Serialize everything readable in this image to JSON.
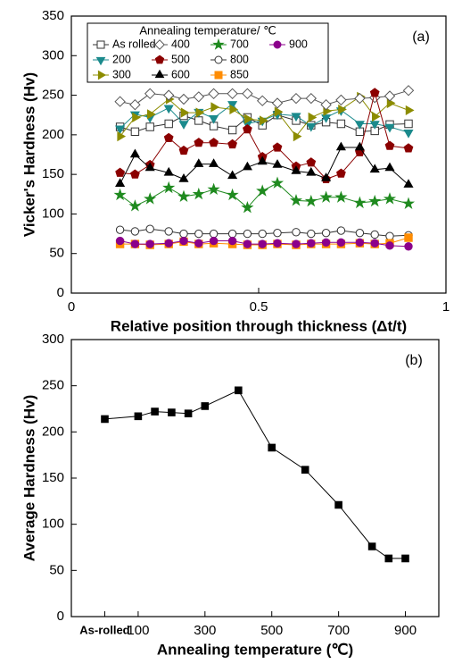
{
  "chart_data": [
    {
      "type": "line",
      "label": "(a)",
      "xlabel": "Relative position through thickness (Δt/t)",
      "ylabel": "Vicker's Hardness (Hv)",
      "legend_title": "Annealing temperature/ ℃",
      "legend": "upper left",
      "x": [
        0.13,
        0.17,
        0.21,
        0.26,
        0.3,
        0.34,
        0.38,
        0.43,
        0.47,
        0.51,
        0.55,
        0.6,
        0.64,
        0.68,
        0.72,
        0.77,
        0.81,
        0.85,
        0.9
      ],
      "xlim": [
        0,
        1
      ],
      "xticks": [
        0,
        0.5,
        1
      ],
      "ylim": [
        0,
        350
      ],
      "yticks": [
        0,
        50,
        100,
        150,
        200,
        250,
        300,
        350
      ],
      "series": [
        {
          "name": "As rolled",
          "color": "#333333",
          "marker": "square-open",
          "values": [
            210,
            204,
            210,
            214,
            224,
            218,
            211,
            206,
            222,
            212,
            225,
            218,
            212,
            216,
            214,
            204,
            205,
            213,
            214
          ]
        },
        {
          "name": "200",
          "color": "#1b8a8c",
          "marker": "tri-down",
          "values": [
            208,
            226,
            222,
            234,
            214,
            229,
            221,
            239,
            214,
            218,
            226,
            224,
            211,
            222,
            231,
            214,
            214,
            210,
            203
          ]
        },
        {
          "name": "300",
          "color": "#8c8c00",
          "marker": "tri-right",
          "values": [
            198,
            222,
            226,
            245,
            228,
            228,
            235,
            232,
            220,
            218,
            229,
            198,
            222,
            230,
            232,
            248,
            223,
            240,
            231
          ]
        },
        {
          "name": "400",
          "color": "#555555",
          "marker": "diamond-open",
          "values": [
            242,
            238,
            252,
            250,
            245,
            248,
            252,
            252,
            252,
            243,
            240,
            246,
            246,
            238,
            244,
            246,
            247,
            249,
            256
          ]
        },
        {
          "name": "500",
          "color": "#8b0000",
          "marker": "pentagon",
          "values": [
            152,
            150,
            162,
            196,
            180,
            190,
            190,
            188,
            207,
            172,
            184,
            160,
            165,
            144,
            151,
            178,
            253,
            186,
            183
          ]
        },
        {
          "name": "600",
          "color": "#000000",
          "marker": "tri-up",
          "values": [
            138,
            175,
            158,
            152,
            144,
            163,
            163,
            148,
            159,
            166,
            162,
            154,
            152,
            145,
            184,
            184,
            156,
            158,
            137
          ]
        },
        {
          "name": "700",
          "color": "#1f8a1f",
          "marker": "star",
          "values": [
            124,
            110,
            119,
            133,
            122,
            125,
            131,
            124,
            108,
            129,
            139,
            117,
            116,
            121,
            121,
            114,
            116,
            119,
            113
          ]
        },
        {
          "name": "800",
          "color": "#333333",
          "marker": "circle-open",
          "values": [
            80,
            78,
            81,
            78,
            75,
            75,
            75,
            75,
            75,
            75,
            76,
            77,
            75,
            76,
            79,
            76,
            74,
            72,
            73
          ]
        },
        {
          "name": "850",
          "color": "#ff8c00",
          "marker": "square",
          "values": [
            62,
            62,
            61,
            62,
            65,
            62,
            63,
            62,
            61,
            61,
            62,
            61,
            62,
            62,
            62,
            63,
            62,
            63,
            70
          ]
        },
        {
          "name": "900",
          "color": "#8b008b",
          "marker": "circle",
          "values": [
            66,
            62,
            62,
            63,
            66,
            63,
            66,
            66,
            62,
            62,
            63,
            62,
            63,
            64,
            64,
            64,
            63,
            60,
            59
          ]
        }
      ]
    },
    {
      "type": "line",
      "label": "(b)",
      "xlabel": "Annealing temperature (℃)",
      "ylabel": "Average Hardness (Hv)",
      "x": [
        0,
        100,
        150,
        200,
        250,
        300,
        400,
        500,
        600,
        700,
        800,
        850,
        900
      ],
      "xlim": [
        -100,
        1000
      ],
      "xticks": [
        {
          "value": 0,
          "label": "As-rolled"
        },
        100,
        300,
        500,
        700,
        900
      ],
      "ylim": [
        0,
        300
      ],
      "yticks": [
        0,
        50,
        100,
        150,
        200,
        250,
        300
      ],
      "series": [
        {
          "color": "#000000",
          "marker": "square",
          "values": [
            214,
            217,
            222,
            221,
            220,
            228,
            245,
            183,
            159,
            121,
            76,
            63,
            63
          ]
        }
      ]
    }
  ]
}
